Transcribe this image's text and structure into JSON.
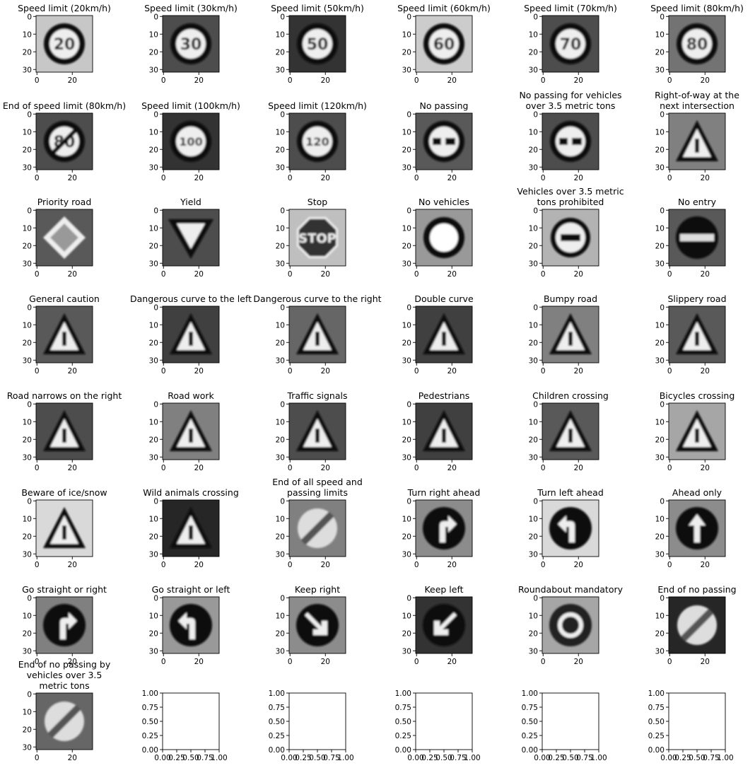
{
  "figure": {
    "image_axes": {
      "xticks": [
        "0",
        "20"
      ],
      "yticks": [
        "0",
        "10",
        "20",
        "30"
      ]
    },
    "empty_axes": {
      "xticks": [
        "0.00",
        "0.25",
        "0.50",
        "0.75",
        "1.00"
      ],
      "yticks": [
        "1.00",
        "0.75",
        "0.50",
        "0.25",
        "0.00"
      ]
    },
    "panels": [
      {
        "title": [
          "Speed limit (20km/h)"
        ],
        "icon": "speed-limit-sign-icon",
        "sign": "circle-number",
        "text": "20",
        "bg": 0.78
      },
      {
        "title": [
          "Speed limit (30km/h)"
        ],
        "icon": "speed-limit-sign-icon",
        "sign": "circle-number",
        "text": "30",
        "bg": 0.3
      },
      {
        "title": [
          "Speed limit (50km/h)"
        ],
        "icon": "speed-limit-sign-icon",
        "sign": "circle-number",
        "text": "50",
        "bg": 0.2
      },
      {
        "title": [
          "Speed limit (60km/h)"
        ],
        "icon": "speed-limit-sign-icon",
        "sign": "circle-number",
        "text": "60",
        "bg": 0.8
      },
      {
        "title": [
          "Speed limit (70km/h)"
        ],
        "icon": "speed-limit-sign-icon",
        "sign": "circle-number",
        "text": "70",
        "bg": 0.3
      },
      {
        "title": [
          "Speed limit (80km/h)"
        ],
        "icon": "speed-limit-sign-icon",
        "sign": "circle-number",
        "text": "80",
        "bg": 0.45
      },
      {
        "title": [
          "End of speed limit (80km/h)"
        ],
        "icon": "end-speed-limit-sign-icon",
        "sign": "end-number",
        "text": "80",
        "bg": 0.3
      },
      {
        "title": [
          "Speed limit (100km/h)"
        ],
        "icon": "speed-limit-sign-icon",
        "sign": "circle-number",
        "text": "100",
        "bg": 0.2
      },
      {
        "title": [
          "Speed limit (120km/h)"
        ],
        "icon": "speed-limit-sign-icon",
        "sign": "circle-number",
        "text": "120",
        "bg": 0.3
      },
      {
        "title": [
          "No passing"
        ],
        "icon": "no-passing-sign-icon",
        "sign": "no-passing",
        "text": "",
        "bg": 0.35
      },
      {
        "title": [
          "No passing for vehicles",
          "over 3.5 metric tons"
        ],
        "icon": "no-passing-trucks-sign-icon",
        "sign": "no-passing",
        "text": "",
        "bg": 0.3
      },
      {
        "title": [
          "Right-of-way at the",
          "next intersection"
        ],
        "icon": "right-of-way-sign-icon",
        "sign": "triangle",
        "text": "",
        "bg": 0.5
      },
      {
        "title": [
          "Priority road"
        ],
        "icon": "priority-road-sign-icon",
        "sign": "diamond",
        "text": "",
        "bg": 0.35
      },
      {
        "title": [
          "Yield"
        ],
        "icon": "yield-sign-icon",
        "sign": "yield",
        "text": "",
        "bg": 0.3
      },
      {
        "title": [
          "Stop"
        ],
        "icon": "stop-sign-icon",
        "sign": "octagon",
        "text": "STOP",
        "bg": 0.75
      },
      {
        "title": [
          "No vehicles"
        ],
        "icon": "no-vehicles-sign-icon",
        "sign": "ring",
        "text": "",
        "bg": 0.6
      },
      {
        "title": [
          "Vehicles over 3.5 metric",
          "tons prohibited"
        ],
        "icon": "trucks-prohibited-sign-icon",
        "sign": "ring-bar",
        "text": "",
        "bg": 0.7
      },
      {
        "title": [
          "No entry"
        ],
        "icon": "no-entry-sign-icon",
        "sign": "no-entry",
        "text": "",
        "bg": 0.35
      },
      {
        "title": [
          "General caution"
        ],
        "icon": "general-caution-sign-icon",
        "sign": "triangle",
        "text": "",
        "bg": 0.35
      },
      {
        "title": [
          "Dangerous curve to the left"
        ],
        "icon": "curve-left-sign-icon",
        "sign": "triangle",
        "text": "",
        "bg": 0.25
      },
      {
        "title": [
          "Dangerous curve to the right"
        ],
        "icon": "curve-right-sign-icon",
        "sign": "triangle",
        "text": "",
        "bg": 0.4
      },
      {
        "title": [
          "Double curve"
        ],
        "icon": "double-curve-sign-icon",
        "sign": "triangle",
        "text": "",
        "bg": 0.25
      },
      {
        "title": [
          "Bumpy road"
        ],
        "icon": "bumpy-road-sign-icon",
        "sign": "triangle",
        "text": "",
        "bg": 0.5
      },
      {
        "title": [
          "Slippery road"
        ],
        "icon": "slippery-road-sign-icon",
        "sign": "triangle",
        "text": "",
        "bg": 0.35
      },
      {
        "title": [
          "Road narrows on the right"
        ],
        "icon": "road-narrows-sign-icon",
        "sign": "triangle",
        "text": "",
        "bg": 0.3
      },
      {
        "title": [
          "Road work"
        ],
        "icon": "road-work-sign-icon",
        "sign": "triangle",
        "text": "",
        "bg": 0.5
      },
      {
        "title": [
          "Traffic signals"
        ],
        "icon": "traffic-signals-sign-icon",
        "sign": "triangle",
        "text": "",
        "bg": 0.3
      },
      {
        "title": [
          "Pedestrians"
        ],
        "icon": "pedestrians-sign-icon",
        "sign": "triangle",
        "text": "",
        "bg": 0.25
      },
      {
        "title": [
          "Children crossing"
        ],
        "icon": "children-crossing-sign-icon",
        "sign": "triangle",
        "text": "",
        "bg": 0.35
      },
      {
        "title": [
          "Bicycles crossing"
        ],
        "icon": "bicycles-crossing-sign-icon",
        "sign": "triangle",
        "text": "",
        "bg": 0.65
      },
      {
        "title": [
          "Beware of ice/snow"
        ],
        "icon": "ice-snow-sign-icon",
        "sign": "triangle",
        "text": "",
        "bg": 0.85
      },
      {
        "title": [
          "Wild animals crossing"
        ],
        "icon": "wild-animals-sign-icon",
        "sign": "triangle",
        "text": "",
        "bg": 0.15
      },
      {
        "title": [
          "End of all speed and",
          "passing limits"
        ],
        "icon": "end-all-limits-sign-icon",
        "sign": "end-all",
        "text": "",
        "bg": 0.5
      },
      {
        "title": [
          "Turn right ahead"
        ],
        "icon": "turn-right-sign-icon",
        "sign": "arrow-right-turn",
        "text": "",
        "bg": 0.55
      },
      {
        "title": [
          "Turn left ahead"
        ],
        "icon": "turn-left-sign-icon",
        "sign": "arrow-left-turn",
        "text": "",
        "bg": 0.85
      },
      {
        "title": [
          "Ahead only"
        ],
        "icon": "ahead-only-sign-icon",
        "sign": "arrow-up",
        "text": "",
        "bg": 0.55
      },
      {
        "title": [
          "Go straight or right"
        ],
        "icon": "straight-or-right-sign-icon",
        "sign": "arrow-right-turn",
        "text": "",
        "bg": 0.5
      },
      {
        "title": [
          "Go straight or left"
        ],
        "icon": "straight-or-left-sign-icon",
        "sign": "arrow-left-turn",
        "text": "",
        "bg": 0.6
      },
      {
        "title": [
          "Keep right"
        ],
        "icon": "keep-right-sign-icon",
        "sign": "arrow-diag-right",
        "text": "",
        "bg": 0.55
      },
      {
        "title": [
          "Keep left"
        ],
        "icon": "keep-left-sign-icon",
        "sign": "arrow-diag-left",
        "text": "",
        "bg": 0.2
      },
      {
        "title": [
          "Roundabout mandatory"
        ],
        "icon": "roundabout-sign-icon",
        "sign": "roundabout",
        "text": "",
        "bg": 0.65
      },
      {
        "title": [
          "End of no passing"
        ],
        "icon": "end-no-passing-sign-icon",
        "sign": "end-all",
        "text": "",
        "bg": 0.15
      },
      {
        "title": [
          "End of no passing by",
          "vehicles over 3.5",
          "metric tons"
        ],
        "icon": "end-no-passing-trucks-sign-icon",
        "sign": "end-all",
        "text": "",
        "bg": 0.4
      },
      {
        "title": [],
        "empty": true
      },
      {
        "title": [],
        "empty": true
      },
      {
        "title": [],
        "empty": true
      },
      {
        "title": [],
        "empty": true
      },
      {
        "title": [],
        "empty": true
      }
    ]
  }
}
